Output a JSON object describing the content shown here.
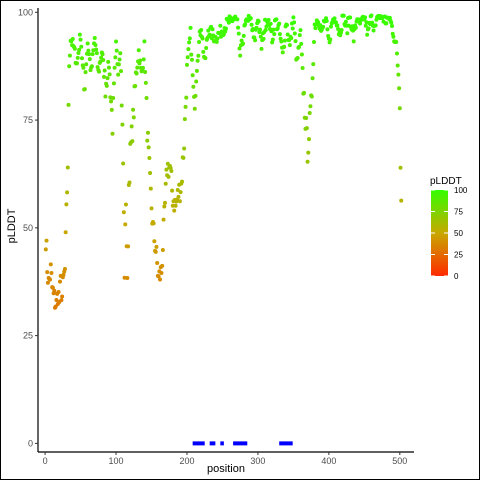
{
  "chart_data": {
    "type": "scatter",
    "xlabel": "position",
    "ylabel": "pLDDT",
    "xlim": [
      -10,
      520
    ],
    "ylim": [
      -2,
      101
    ],
    "x_ticks": [
      0,
      100,
      200,
      300,
      400,
      500
    ],
    "y_ticks": [
      0,
      25,
      50,
      75,
      100
    ],
    "x_tick_labels": [
      "0",
      "100",
      "200",
      "300",
      "400",
      "500"
    ],
    "y_tick_labels": [
      "0",
      "25",
      "50",
      "75",
      "100"
    ],
    "grid": false,
    "color_scale": {
      "title": "pLDDT",
      "min": 0,
      "max": 100,
      "low_color": "#ff2a00",
      "high_color": "#33ff00",
      "breaks": [
        0,
        25,
        50,
        75,
        100
      ],
      "break_labels": [
        "0",
        "25",
        "50",
        "75",
        "100"
      ],
      "legend_position": "right"
    },
    "anchors": [
      [
        1,
        48
      ],
      [
        3,
        41
      ],
      [
        5,
        37
      ],
      [
        8,
        40
      ],
      [
        10,
        36
      ],
      [
        12,
        34
      ],
      [
        14,
        33
      ],
      [
        16,
        32
      ],
      [
        18,
        35
      ],
      [
        20,
        33
      ],
      [
        22,
        37
      ],
      [
        24,
        34
      ],
      [
        26,
        38
      ],
      [
        28,
        40
      ],
      [
        30,
        53
      ],
      [
        32,
        65
      ],
      [
        34,
        88
      ],
      [
        36,
        94
      ],
      [
        40,
        92
      ],
      [
        45,
        88
      ],
      [
        50,
        95
      ],
      [
        55,
        82
      ],
      [
        60,
        93
      ],
      [
        65,
        86
      ],
      [
        70,
        94
      ],
      [
        75,
        86
      ],
      [
        80,
        91
      ],
      [
        85,
        83
      ],
      [
        90,
        88
      ],
      [
        95,
        74
      ],
      [
        100,
        92
      ],
      [
        103,
        87
      ],
      [
        106,
        92
      ],
      [
        108,
        80
      ],
      [
        110,
        65
      ],
      [
        112,
        40
      ],
      [
        114,
        57
      ],
      [
        116,
        36
      ],
      [
        118,
        60
      ],
      [
        120,
        67
      ],
      [
        124,
        75
      ],
      [
        128,
        85
      ],
      [
        132,
        91
      ],
      [
        136,
        85
      ],
      [
        140,
        92
      ],
      [
        144,
        73
      ],
      [
        148,
        60
      ],
      [
        152,
        50
      ],
      [
        156,
        45
      ],
      [
        160,
        38
      ],
      [
        164,
        40
      ],
      [
        168,
        52
      ],
      [
        172,
        64
      ],
      [
        176,
        64
      ],
      [
        180,
        57
      ],
      [
        184,
        55
      ],
      [
        188,
        58
      ],
      [
        192,
        60
      ],
      [
        196,
        70
      ],
      [
        200,
        87
      ],
      [
        205,
        95
      ],
      [
        210,
        78
      ],
      [
        215,
        90
      ],
      [
        220,
        97
      ],
      [
        225,
        88
      ],
      [
        230,
        96
      ],
      [
        240,
        94
      ],
      [
        250,
        96
      ],
      [
        260,
        98
      ],
      [
        270,
        99
      ],
      [
        275,
        90
      ],
      [
        280,
        95
      ],
      [
        285,
        99
      ],
      [
        290,
        98
      ],
      [
        295,
        93
      ],
      [
        300,
        99
      ],
      [
        305,
        92
      ],
      [
        310,
        97
      ],
      [
        315,
        99
      ],
      [
        320,
        94
      ],
      [
        325,
        98
      ],
      [
        330,
        96
      ],
      [
        335,
        90
      ],
      [
        340,
        98
      ],
      [
        345,
        92
      ],
      [
        350,
        99
      ],
      [
        355,
        88
      ],
      [
        360,
        95
      ],
      [
        365,
        80
      ],
      [
        370,
        68
      ],
      [
        375,
        78
      ],
      [
        380,
        97
      ],
      [
        385,
        99
      ],
      [
        390,
        95
      ],
      [
        395,
        99
      ],
      [
        400,
        93
      ],
      [
        405,
        98
      ],
      [
        410,
        99
      ],
      [
        415,
        95
      ],
      [
        420,
        99
      ],
      [
        425,
        96
      ],
      [
        430,
        99
      ],
      [
        435,
        94
      ],
      [
        440,
        99
      ],
      [
        445,
        97
      ],
      [
        450,
        99
      ],
      [
        455,
        95
      ],
      [
        460,
        99
      ],
      [
        465,
        96
      ],
      [
        470,
        99
      ],
      [
        475,
        99
      ],
      [
        480,
        98
      ],
      [
        485,
        99
      ],
      [
        490,
        96
      ],
      [
        495,
        92
      ],
      [
        498,
        86
      ],
      [
        500,
        80
      ],
      [
        501,
        66
      ],
      [
        502,
        59
      ]
    ],
    "disorder_segments": {
      "color": "#0000ff",
      "y": 0,
      "ranges": [
        [
          208,
          225
        ],
        [
          232,
          240
        ],
        [
          247,
          252
        ],
        [
          265,
          285
        ],
        [
          330,
          349
        ]
      ]
    }
  }
}
